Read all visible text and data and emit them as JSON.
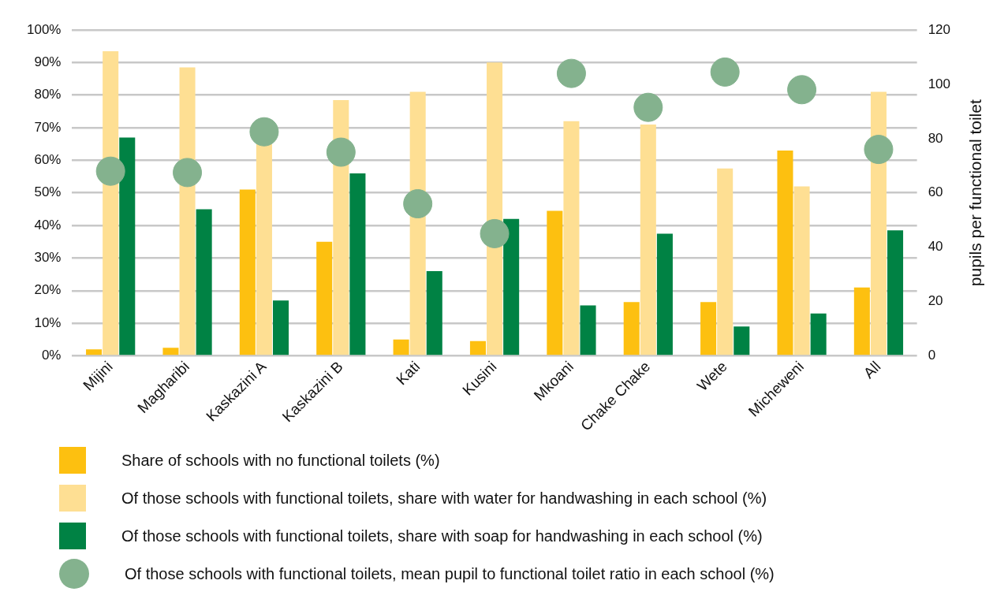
{
  "chart_data": {
    "type": "bar",
    "categories": [
      "Mijini",
      "Magharibi",
      "Kaskazini A",
      "Kaskazini B",
      "Kati",
      "Kusini",
      "Mkoani",
      "Chake Chake",
      "Wete",
      "Micheweni",
      "All"
    ],
    "series": [
      {
        "name": "Share of schools with no functional toilets (%)",
        "color": "#fdc010",
        "values": [
          2,
          2.5,
          51,
          35,
          5,
          4.5,
          44.5,
          16.5,
          16.5,
          63,
          21
        ]
      },
      {
        "name": "Of those schools with functional toilets, share with water for handwashing in each school (%)",
        "color": "#fedf93",
        "values": [
          93.5,
          88.5,
          65,
          78.5,
          81,
          90,
          72,
          71,
          57.5,
          52,
          81
        ]
      },
      {
        "name": "Of those schools with functional toilets, share with soap for handwashing in each school (%)",
        "color": "#008244",
        "values": [
          67,
          45,
          17,
          56,
          26,
          42,
          15.5,
          37.5,
          9,
          13,
          38.5
        ]
      },
      {
        "name": "Of those schools with functional toilets, mean pupil to functional toilet ratio in each school (%)",
        "color": "#84b28e",
        "type": "scatter",
        "axis": "y2",
        "x": [
          "Mijini",
          "Magharibi",
          "Kaskazini A",
          "Kaskazini B",
          "Kati",
          "Kusini",
          "Mkoani",
          "Chake Chake",
          "Wete",
          "Micheweni",
          "All"
        ],
        "values": [
          68,
          67.5,
          82.5,
          75,
          56,
          45,
          104,
          91.5,
          104.5,
          98,
          76
        ]
      }
    ],
    "ylim": [
      0,
      100
    ],
    "yticks": [
      {
        "value": 0,
        "label": "0%"
      },
      {
        "value": 10,
        "label": "10%"
      },
      {
        "value": 20,
        "label": "20%"
      },
      {
        "value": 30,
        "label": "30%"
      },
      {
        "value": 40,
        "label": "40%"
      },
      {
        "value": 50,
        "label": "50%"
      },
      {
        "value": 60,
        "label": "60%"
      },
      {
        "value": 70,
        "label": "70%"
      },
      {
        "value": 80,
        "label": "80%"
      },
      {
        "value": 90,
        "label": "90%"
      },
      {
        "value": 100,
        "label": "100%"
      }
    ],
    "y2lim": [
      0,
      120
    ],
    "y2ticks": [
      0,
      20,
      40,
      60,
      80,
      100,
      120
    ],
    "y2label": "pupils per functional toilet",
    "grid": "y",
    "legend": "bottom",
    "marker": "circle"
  }
}
